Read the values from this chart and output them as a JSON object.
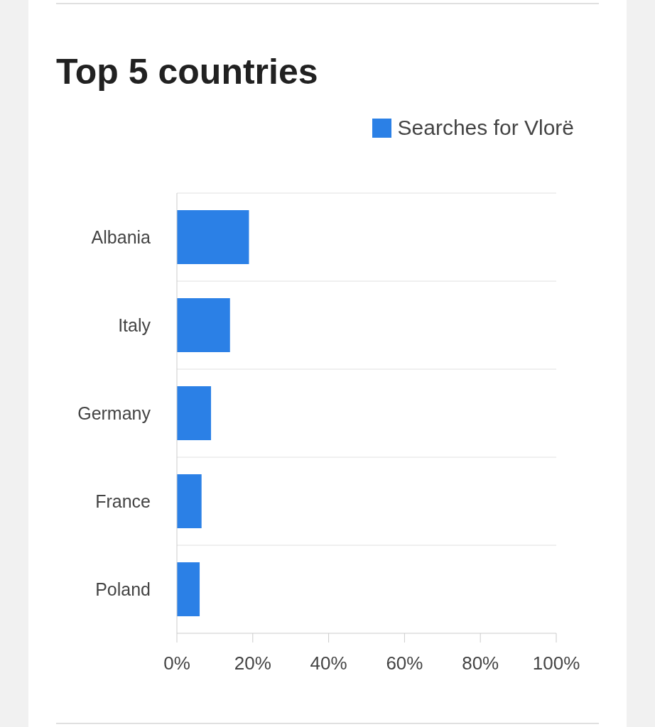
{
  "chart_data": {
    "type": "bar",
    "title": "Top 5 countries",
    "orientation": "horizontal",
    "categories": [
      "Albania",
      "Italy",
      "Germany",
      "France",
      "Poland"
    ],
    "series": [
      {
        "name": "Searches for Vlorë",
        "color": "#2b80e6",
        "values": [
          19,
          14,
          9,
          6.5,
          6
        ]
      }
    ],
    "xlim": [
      0,
      100
    ],
    "xticks": [
      {
        "value": 0,
        "label": "0%"
      },
      {
        "value": 20,
        "label": "20%"
      },
      {
        "value": 40,
        "label": "40%"
      },
      {
        "value": 60,
        "label": "60%"
      },
      {
        "value": 80,
        "label": "80%"
      },
      {
        "value": 100,
        "label": "100%"
      }
    ],
    "grid": "y",
    "legend": "top right"
  }
}
